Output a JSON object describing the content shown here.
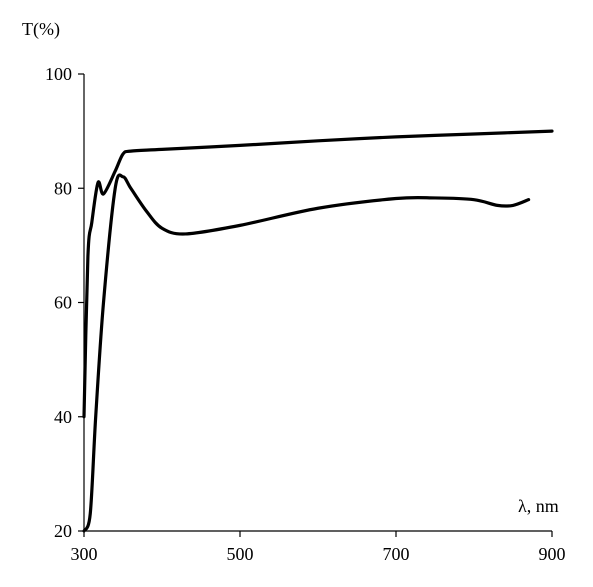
{
  "chart_data": {
    "type": "line",
    "title": "",
    "xlabel": "λ, nm",
    "ylabel": "T(%)",
    "xlim": [
      300,
      900
    ],
    "ylim": [
      20,
      100
    ],
    "x_ticks": [
      300,
      500,
      700,
      900
    ],
    "y_ticks": [
      20,
      40,
      60,
      80,
      100
    ],
    "grid": false,
    "legend": "none",
    "line_color": "#000000",
    "series": [
      {
        "x": [
          300,
          305,
          310,
          318,
          325,
          340,
          350,
          360,
          400,
          500,
          600,
          700,
          800,
          900
        ],
        "y": [
          40,
          68,
          74,
          81,
          79,
          83,
          86,
          86.5,
          86.8,
          87.5,
          88.3,
          89.0,
          89.5,
          90.0
        ]
      },
      {
        "x": [
          300,
          308,
          315,
          325,
          340,
          350,
          360,
          380,
          400,
          430,
          500,
          600,
          700,
          750,
          800,
          830,
          850,
          870
        ],
        "y": [
          20,
          23,
          40,
          60,
          80,
          82,
          80,
          76,
          73,
          72,
          73.5,
          76.5,
          78.2,
          78.3,
          78.0,
          77.0,
          77.0,
          78.0
        ]
      }
    ]
  }
}
